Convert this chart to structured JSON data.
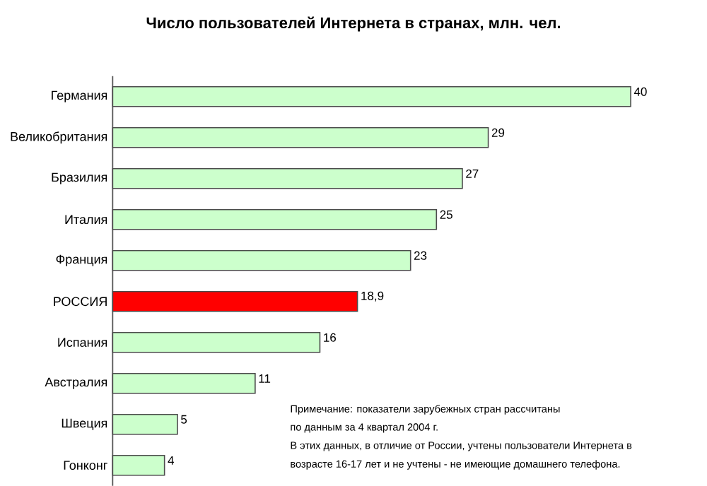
{
  "chart_data": {
    "type": "bar",
    "orientation": "horizontal",
    "title": "Число пользователей Интернета в странах, млн. чел.",
    "categories": [
      "Германия",
      "Великобритания",
      "Бразилия",
      "Италия",
      "Франция",
      "РОССИЯ",
      "Испания",
      "Австралия",
      "Швеция",
      "Гонконг"
    ],
    "values": [
      40,
      29,
      27,
      25,
      23,
      18.9,
      16,
      11,
      5,
      4
    ],
    "value_labels": [
      "40",
      "29",
      "27",
      "25",
      "23",
      "18,9",
      "16",
      "11",
      "5",
      "4"
    ],
    "colors": [
      "#ccffcc",
      "#ccffcc",
      "#ccffcc",
      "#ccffcc",
      "#ccffcc",
      "#ff0000",
      "#ccffcc",
      "#ccffcc",
      "#ccffcc",
      "#ccffcc"
    ],
    "annotations": [
      "Примечание: показатели зарубежных стран рассчитаны",
      "по данным за 4 квартал 2004 г.",
      "В этих данных, в отличие от России, учтены пользователи Интернета в",
      "возрасте 16-17 лет и не учтены - не имеющие домашнего телефона."
    ]
  }
}
